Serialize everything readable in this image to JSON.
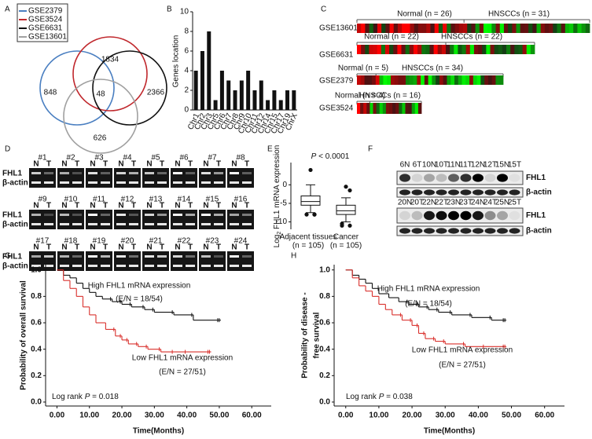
{
  "chart_data": [
    {
      "type": "venn",
      "label": "A",
      "series": [
        {
          "name": "GSE2379",
          "color": "#4a7fc1"
        },
        {
          "name": "GSE3524",
          "color": "#c0282d"
        },
        {
          "name": "GSE6631",
          "color": "#111111"
        },
        {
          "name": "GSE13601",
          "color": "#a0a0a0"
        }
      ],
      "values": [
        1834,
        848,
        48,
        2366,
        626
      ]
    },
    {
      "type": "bar",
      "label": "B",
      "ylabel": "Genes location",
      "categories": [
        "Chr1",
        "Chr2",
        "Chr3",
        "Chr5",
        "Chr6",
        "Chr7",
        "Chr8",
        "Chr9",
        "Chr10",
        "Chr11",
        "Chr12",
        "Chr14",
        "Chr15",
        "Chr17",
        "Chr19",
        "ChrX"
      ],
      "values": [
        4,
        6,
        8,
        1,
        4,
        3,
        2,
        3,
        4,
        2,
        3,
        1,
        2,
        1,
        2,
        2
      ],
      "color": "#111111",
      "ylim": [
        0,
        10
      ],
      "yticks": [
        0,
        2,
        4,
        6,
        8,
        10
      ]
    },
    {
      "type": "heatmap",
      "label": "C",
      "rows": [
        {
          "name": "GSE13601",
          "groups": [
            "Normal (n = 26)",
            "HNSCCs (n = 31)"
          ]
        },
        {
          "name": "GSE6631",
          "groups": [
            "Normal (n = 22)",
            "HNSCCs (n = 22)"
          ]
        },
        {
          "name": "GSE2379",
          "groups": [
            "Normal (n = 5)",
            "HNSCCs (n = 34)"
          ]
        },
        {
          "name": "GSE3524",
          "groups": [
            "Normal (n = 4)",
            "HNSCCs (n = 16)"
          ]
        }
      ]
    },
    {
      "type": "gel",
      "label": "D",
      "samples": [
        "#1",
        "#2",
        "#3",
        "#4",
        "#5",
        "#6",
        "#7",
        "#8",
        "#9",
        "#10",
        "#11",
        "#12",
        "#13",
        "#14",
        "#15",
        "#16",
        "#17",
        "#18",
        "#19",
        "#20",
        "#21",
        "#22",
        "#23",
        "#24"
      ],
      "lanes": [
        "N",
        "T"
      ],
      "rows": [
        "FHL1",
        "β-actin"
      ]
    },
    {
      "type": "box",
      "label": "E",
      "title": [
        "P",
        " < 0.0001"
      ],
      "ylabel": [
        "Log",
        "2",
        " FHL1 mRNA expression"
      ],
      "categories": [
        "Adjacent tissues",
        "Cancer"
      ],
      "n_labels": [
        "(n = 105)",
        "(n = 105)"
      ],
      "values": [
        [
          -7.5,
          -5.5,
          -4.5,
          -3,
          0
        ],
        [
          -10,
          -8,
          -7,
          -5.5,
          -3.5
        ]
      ],
      "outliers": [
        [
          4,
          -8,
          -8,
          -8
        ],
        [
          -0.5,
          -1.5,
          -10.5,
          -11,
          -11
        ]
      ],
      "ylim": [
        -12,
        6
      ],
      "yticks": [
        0,
        -5,
        -10
      ]
    },
    {
      "type": "blot",
      "label": "F",
      "rows": [
        {
          "lanes": [
            "6N",
            "6T",
            "10N",
            "10T",
            "11N",
            "11T",
            "12N",
            "12T",
            "15N",
            "15T"
          ]
        },
        {
          "lanes": [
            "20N",
            "20T",
            "22N",
            "22T",
            "23N",
            "23T",
            "24N",
            "24T",
            "25N",
            "25T"
          ]
        }
      ],
      "bands": [
        "FHL1",
        "β-actin"
      ]
    },
    {
      "type": "survival",
      "label": "G",
      "ylabel": [
        "Probability of overall survival"
      ],
      "xlabel": "Time(Months)",
      "annotations": [
        "High FHL1 mRNA expression",
        "(E/N = 18/54)",
        "Low  FHL1 mRNA expression",
        "(E/N = 27/51)"
      ],
      "logrank": [
        "Log rank ",
        "P",
        " = 0.018"
      ],
      "xlim": [
        -3.5,
        66
      ],
      "ylim": [
        -0.03,
        1.04
      ],
      "xticks": [
        {
          "value": 0,
          "label": "0.00"
        },
        {
          "value": 10,
          "label": "10.00"
        },
        {
          "value": 20,
          "label": "20.00"
        },
        {
          "value": 30,
          "label": "30.00"
        },
        {
          "value": 40,
          "label": "40.00"
        },
        {
          "value": 50,
          "label": "50.00"
        },
        {
          "value": 60,
          "label": "60.00"
        }
      ],
      "yticks": [
        {
          "value": 0,
          "label": "0.0"
        },
        {
          "value": 0.2,
          "label": "0.2"
        },
        {
          "value": 0.4,
          "label": "0.4"
        },
        {
          "value": 0.6,
          "label": "0.6"
        },
        {
          "value": 0.8,
          "label": "0.8"
        },
        {
          "value": 1,
          "label": "1.0"
        }
      ],
      "series": [
        {
          "name": "High",
          "color": "#111111",
          "x": [
            0,
            2,
            4,
            6,
            8,
            10,
            12,
            14,
            17,
            20,
            23,
            27,
            30,
            36,
            42,
            50
          ],
          "values": [
            1,
            0.96,
            0.94,
            0.9,
            0.86,
            0.83,
            0.8,
            0.78,
            0.76,
            0.74,
            0.72,
            0.7,
            0.68,
            0.66,
            0.62,
            0.62
          ]
        },
        {
          "name": "Low",
          "color": "#d9302c",
          "x": [
            0,
            2,
            4,
            6,
            8,
            10,
            12,
            15,
            18,
            20,
            22,
            25,
            28,
            32,
            36,
            40,
            47
          ],
          "values": [
            1,
            0.92,
            0.86,
            0.8,
            0.72,
            0.66,
            0.6,
            0.55,
            0.5,
            0.47,
            0.44,
            0.42,
            0.4,
            0.38,
            0.38,
            0.38,
            0.38
          ]
        }
      ]
    },
    {
      "type": "survival",
      "label": "H",
      "ylabel": [
        "Probability of disease -",
        "free survival"
      ],
      "xlabel": "Time(Months)",
      "annotations": [
        "High FHL1 mRNA expression",
        "(E/N = 18/54)",
        "Low  FHL1 mRNA expression",
        "(E/N = 27/51)"
      ],
      "logrank": [
        "Log rank ",
        "P",
        " = 0.038"
      ],
      "xlim": [
        -3.5,
        66
      ],
      "ylim": [
        -0.03,
        1.04
      ],
      "xticks": [
        {
          "value": 0,
          "label": "0.00"
        },
        {
          "value": 10,
          "label": "10.00"
        },
        {
          "value": 20,
          "label": "20.00"
        },
        {
          "value": 30,
          "label": "30.00"
        },
        {
          "value": 40,
          "label": "40.00"
        },
        {
          "value": 50,
          "label": "50.00"
        },
        {
          "value": 60,
          "label": "60.00"
        }
      ],
      "yticks": [
        {
          "value": 0,
          "label": "0.0"
        },
        {
          "value": 0.2,
          "label": "0.2"
        },
        {
          "value": 0.4,
          "label": "0.4"
        },
        {
          "value": 0.6,
          "label": "0.6"
        },
        {
          "value": 0.8,
          "label": "0.8"
        },
        {
          "value": 1,
          "label": "1.0"
        }
      ],
      "series": [
        {
          "name": "High",
          "color": "#111111",
          "x": [
            0,
            2,
            4,
            6,
            8,
            10,
            13,
            16,
            19,
            22,
            25,
            28,
            32,
            38,
            44,
            48
          ],
          "values": [
            1,
            0.96,
            0.93,
            0.9,
            0.86,
            0.82,
            0.79,
            0.76,
            0.74,
            0.72,
            0.7,
            0.68,
            0.66,
            0.64,
            0.62,
            0.62
          ]
        },
        {
          "name": "Low",
          "color": "#d9302c",
          "x": [
            0,
            2,
            4,
            6,
            8,
            10,
            12,
            14,
            17,
            20,
            22,
            24,
            27,
            30,
            36,
            42,
            48
          ],
          "values": [
            1,
            0.94,
            0.88,
            0.84,
            0.8,
            0.74,
            0.7,
            0.66,
            0.62,
            0.58,
            0.52,
            0.48,
            0.46,
            0.44,
            0.42,
            0.42,
            0.42
          ]
        }
      ]
    }
  ]
}
